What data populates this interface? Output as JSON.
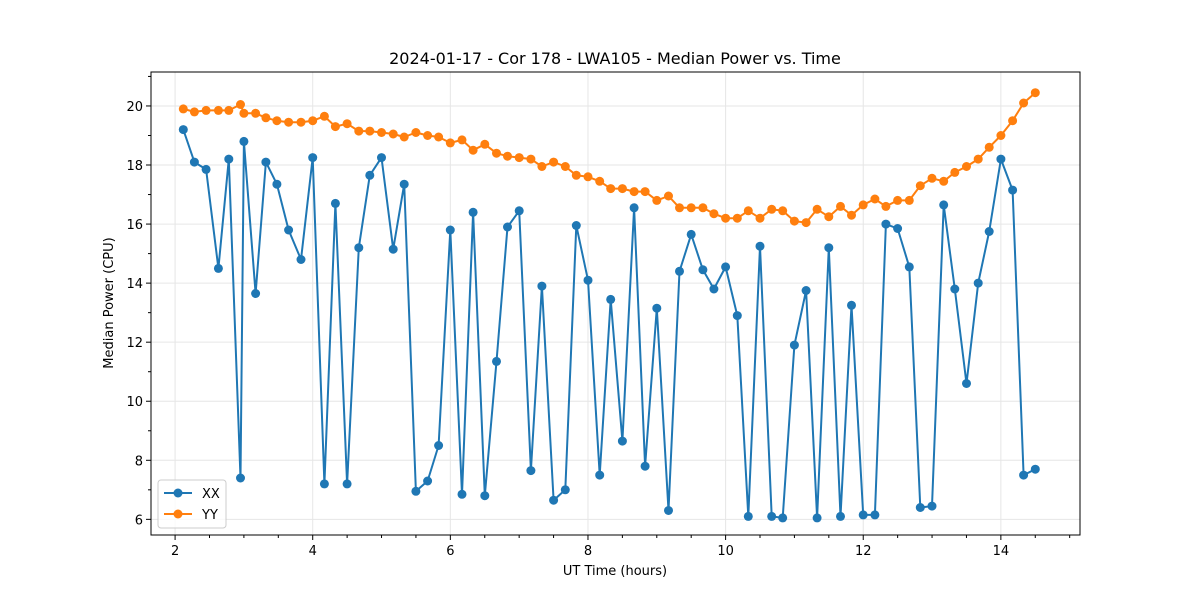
{
  "chart_data": {
    "type": "line",
    "title": "2024-01-17 - Cor 178 - LWA105 - Median Power vs. Time",
    "xlabel": "UT Time (hours)",
    "ylabel": "Median Power (CPU)",
    "xlim": [
      1.65,
      15.15
    ],
    "ylim": [
      5.47,
      21.15
    ],
    "xticks": [
      2,
      4,
      6,
      8,
      10,
      12,
      14
    ],
    "yticks": [
      6,
      8,
      10,
      12,
      14,
      16,
      18,
      20
    ],
    "grid": true,
    "legend_position": "lower-left",
    "colors": {
      "XX": "#1f77b4",
      "YY": "#ff7f0e",
      "grid": "#e6e6e6"
    },
    "series": [
      {
        "name": "XX",
        "x": [
          2.12,
          2.28,
          2.45,
          2.63,
          2.78,
          2.95,
          3.0,
          3.17,
          3.32,
          3.48,
          3.65,
          3.83,
          4.0,
          4.17,
          4.33,
          4.5,
          4.67,
          4.83,
          5.0,
          5.17,
          5.33,
          5.5,
          5.67,
          5.83,
          6.0,
          6.17,
          6.33,
          6.5,
          6.67,
          6.83,
          7.0,
          7.17,
          7.33,
          7.5,
          7.67,
          7.83,
          8.0,
          8.17,
          8.33,
          8.5,
          8.67,
          8.83,
          9.0,
          9.17,
          9.33,
          9.5,
          9.67,
          9.83,
          10.0,
          10.17,
          10.33,
          10.5,
          10.67,
          10.83,
          11.0,
          11.17,
          11.33,
          11.5,
          11.67,
          11.83,
          12.0,
          12.17,
          12.33,
          12.5,
          12.67,
          12.83,
          13.0,
          13.17,
          13.33,
          13.5,
          13.67,
          13.83,
          14.0,
          14.17,
          14.33,
          14.5
        ],
        "y": [
          19.2,
          18.1,
          17.85,
          14.5,
          18.2,
          7.4,
          18.8,
          13.65,
          18.1,
          17.35,
          15.8,
          14.8,
          18.25,
          7.2,
          16.7,
          7.2,
          15.2,
          17.65,
          18.25,
          15.15,
          17.35,
          6.95,
          7.3,
          8.5,
          15.8,
          6.85,
          16.4,
          6.8,
          11.35,
          15.9,
          16.45,
          7.65,
          13.9,
          6.65,
          7.0,
          15.95,
          14.1,
          7.5,
          13.45,
          8.65,
          16.55,
          7.8,
          13.15,
          6.3,
          14.4,
          15.65,
          14.45,
          13.8,
          14.55,
          12.9,
          6.1,
          15.25,
          6.1,
          6.05,
          11.9,
          13.75,
          6.05,
          15.2,
          6.1,
          13.25,
          6.15,
          6.15,
          16.0,
          15.85,
          14.55,
          6.4,
          6.45,
          16.65,
          13.8,
          10.6,
          14.0,
          15.75,
          18.2,
          17.15,
          7.5,
          7.7
        ]
      },
      {
        "name": "YY",
        "x": [
          2.12,
          2.28,
          2.45,
          2.63,
          2.78,
          2.95,
          3.0,
          3.17,
          3.32,
          3.48,
          3.65,
          3.83,
          4.0,
          4.17,
          4.33,
          4.5,
          4.67,
          4.83,
          5.0,
          5.17,
          5.33,
          5.5,
          5.67,
          5.83,
          6.0,
          6.17,
          6.33,
          6.5,
          6.67,
          6.83,
          7.0,
          7.17,
          7.33,
          7.5,
          7.67,
          7.83,
          8.0,
          8.17,
          8.33,
          8.5,
          8.67,
          8.83,
          9.0,
          9.17,
          9.33,
          9.5,
          9.67,
          9.83,
          10.0,
          10.17,
          10.33,
          10.5,
          10.67,
          10.83,
          11.0,
          11.17,
          11.33,
          11.5,
          11.67,
          11.83,
          12.0,
          12.17,
          12.33,
          12.5,
          12.67,
          12.83,
          13.0,
          13.17,
          13.33,
          13.5,
          13.67,
          13.83,
          14.0,
          14.17,
          14.33,
          14.5
        ],
        "y": [
          19.9,
          19.8,
          19.85,
          19.85,
          19.85,
          20.05,
          19.75,
          19.75,
          19.6,
          19.5,
          19.45,
          19.45,
          19.5,
          19.65,
          19.3,
          19.4,
          19.15,
          19.15,
          19.1,
          19.05,
          18.95,
          19.1,
          19.0,
          18.95,
          18.75,
          18.85,
          18.5,
          18.7,
          18.4,
          18.3,
          18.25,
          18.2,
          17.95,
          18.1,
          17.95,
          17.65,
          17.6,
          17.45,
          17.2,
          17.2,
          17.1,
          17.1,
          16.8,
          16.95,
          16.55,
          16.55,
          16.55,
          16.35,
          16.2,
          16.2,
          16.45,
          16.2,
          16.5,
          16.45,
          16.1,
          16.05,
          16.5,
          16.25,
          16.6,
          16.3,
          16.65,
          16.85,
          16.6,
          16.8,
          16.8,
          17.3,
          17.55,
          17.45,
          17.75,
          17.95,
          18.2,
          18.6,
          19.0,
          19.5,
          20.1,
          20.45
        ]
      }
    ]
  }
}
